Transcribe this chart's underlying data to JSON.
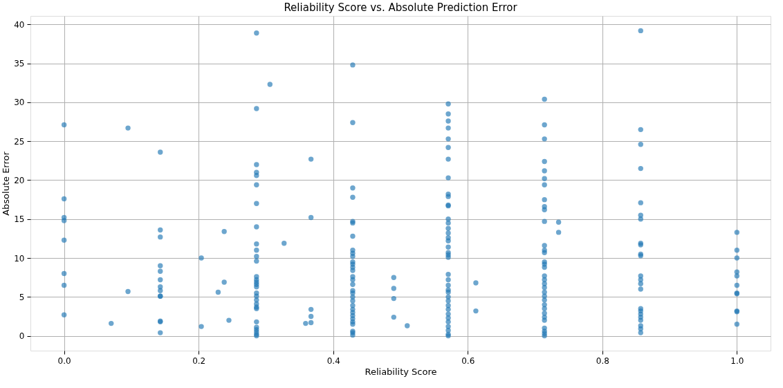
{
  "chart_data": {
    "type": "scatter",
    "title": "Reliability Score vs. Absolute Prediction Error",
    "xlabel": "Reliability Score",
    "ylabel": "Absolute Error",
    "xlim": [
      -0.05,
      1.05
    ],
    "ylim": [
      -1.9,
      41.1
    ],
    "xticks": [
      {
        "value": 0,
        "label": "0.0"
      },
      {
        "value": 0.2,
        "label": "0.2"
      },
      {
        "value": 0.4,
        "label": "0.4"
      },
      {
        "value": 0.6,
        "label": "0.6"
      },
      {
        "value": 0.8,
        "label": "0.8"
      },
      {
        "value": 1,
        "label": "1.0"
      }
    ],
    "yticks": [
      0,
      5,
      10,
      15,
      20,
      25,
      30,
      35,
      40
    ],
    "grid": true,
    "marker": "circle",
    "series": [
      {
        "color": "#1f77b4",
        "x": [
          0,
          0,
          0,
          0,
          0,
          0,
          0,
          0,
          0.07,
          0.095,
          0.095,
          0.143,
          0.143,
          0.143,
          0.143,
          0.143,
          0.143,
          0.143,
          0.143,
          0.143,
          0.143,
          0.143,
          0.143,
          0.143,
          0.204,
          0.204,
          0.229,
          0.238,
          0.238,
          0.245,
          0.286,
          0.286,
          0.286,
          0.286,
          0.286,
          0.286,
          0.286,
          0.286,
          0.286,
          0.286,
          0.286,
          0.286,
          0.286,
          0.286,
          0.286,
          0.286,
          0.286,
          0.286,
          0.286,
          0.286,
          0.286,
          0.286,
          0.286,
          0.286,
          0.286,
          0.286,
          0.286,
          0.286,
          0.286,
          0.306,
          0.327,
          0.359,
          0.367,
          0.367,
          0.367,
          0.367,
          0.367,
          0.429,
          0.429,
          0.429,
          0.429,
          0.429,
          0.429,
          0.429,
          0.429,
          0.429,
          0.429,
          0.429,
          0.429,
          0.429,
          0.429,
          0.429,
          0.429,
          0.429,
          0.429,
          0.429,
          0.429,
          0.429,
          0.429,
          0.429,
          0.429,
          0.429,
          0.429,
          0.429,
          0.429,
          0.429,
          0.429,
          0.429,
          0.49,
          0.49,
          0.49,
          0.49,
          0.51,
          0.571,
          0.571,
          0.571,
          0.571,
          0.571,
          0.571,
          0.571,
          0.571,
          0.571,
          0.571,
          0.571,
          0.571,
          0.571,
          0.571,
          0.571,
          0.571,
          0.571,
          0.571,
          0.571,
          0.571,
          0.571,
          0.571,
          0.571,
          0.571,
          0.571,
          0.571,
          0.571,
          0.571,
          0.571,
          0.571,
          0.571,
          0.571,
          0.571,
          0.571,
          0.571,
          0.571,
          0.571,
          0.571,
          0.612,
          0.612,
          0.714,
          0.714,
          0.714,
          0.714,
          0.714,
          0.714,
          0.714,
          0.714,
          0.714,
          0.714,
          0.714,
          0.714,
          0.714,
          0.714,
          0.714,
          0.714,
          0.714,
          0.714,
          0.714,
          0.714,
          0.714,
          0.714,
          0.714,
          0.714,
          0.714,
          0.714,
          0.714,
          0.714,
          0.714,
          0.714,
          0.714,
          0.714,
          0.714,
          0.735,
          0.735,
          0.857,
          0.857,
          0.857,
          0.857,
          0.857,
          0.857,
          0.857,
          0.857,
          0.857,
          0.857,
          0.857,
          0.857,
          0.857,
          0.857,
          0.857,
          0.857,
          0.857,
          0.857,
          0.857,
          0.857,
          0.857,
          0.857,
          0.857,
          1,
          1,
          1,
          1,
          1,
          1,
          1,
          1,
          1,
          1,
          1
        ],
        "values": [
          27.1,
          17.6,
          15.2,
          14.8,
          12.3,
          8.0,
          6.5,
          2.7,
          1.6,
          26.7,
          5.7,
          23.6,
          13.6,
          12.7,
          9.0,
          8.3,
          7.2,
          6.3,
          5.8,
          5.1,
          5.1,
          1.9,
          1.8,
          0.4,
          10.0,
          1.2,
          5.6,
          13.4,
          6.9,
          2.0,
          38.9,
          29.2,
          22.0,
          21.0,
          20.6,
          19.4,
          17.0,
          14.0,
          11.8,
          11.0,
          10.2,
          9.6,
          7.6,
          7.2,
          6.9,
          6.6,
          6.3,
          5.5,
          5.1,
          4.6,
          4.1,
          3.7,
          3.5,
          1.8,
          1.1,
          0.8,
          0.5,
          0.2,
          0.0,
          32.3,
          11.9,
          1.6,
          22.7,
          15.2,
          3.4,
          2.5,
          1.7,
          34.8,
          27.4,
          19.0,
          17.8,
          14.7,
          14.5,
          12.8,
          11.0,
          10.6,
          10.2,
          9.5,
          9.2,
          8.8,
          8.4,
          7.6,
          7.2,
          6.6,
          5.8,
          5.5,
          5.0,
          4.5,
          3.9,
          3.4,
          3.0,
          2.6,
          2.2,
          1.8,
          1.5,
          0.6,
          0.4,
          0.1,
          7.5,
          6.1,
          4.8,
          2.4,
          1.3,
          29.8,
          28.5,
          27.6,
          26.7,
          25.3,
          24.2,
          22.7,
          20.3,
          18.2,
          17.9,
          16.8,
          16.7,
          15.0,
          14.5,
          13.8,
          13.2,
          12.6,
          12.2,
          11.4,
          10.7,
          10.4,
          10.1,
          7.9,
          7.2,
          6.5,
          5.9,
          5.6,
          5.0,
          4.5,
          3.9,
          3.4,
          2.8,
          2.3,
          1.8,
          1.2,
          0.7,
          0.2,
          0.0,
          6.8,
          3.2,
          30.4,
          27.1,
          25.3,
          22.4,
          21.2,
          20.2,
          19.4,
          17.5,
          16.6,
          16.2,
          14.7,
          11.6,
          11.0,
          10.7,
          9.5,
          9.2,
          8.8,
          7.7,
          7.2,
          6.7,
          6.2,
          5.6,
          5.1,
          4.6,
          4.0,
          3.5,
          2.9,
          2.4,
          2.0,
          1.0,
          0.6,
          0.3,
          0.0,
          14.6,
          13.3,
          39.2,
          26.5,
          24.6,
          21.5,
          17.1,
          15.5,
          15.0,
          11.9,
          11.7,
          10.5,
          10.3,
          7.7,
          7.2,
          6.7,
          6.0,
          3.5,
          3.2,
          2.8,
          2.4,
          2.0,
          1.3,
          0.9,
          0.4,
          13.3,
          11.0,
          10.0,
          8.2,
          7.7,
          6.5,
          5.5,
          5.4,
          3.2,
          3.1,
          1.5
        ]
      }
    ]
  }
}
